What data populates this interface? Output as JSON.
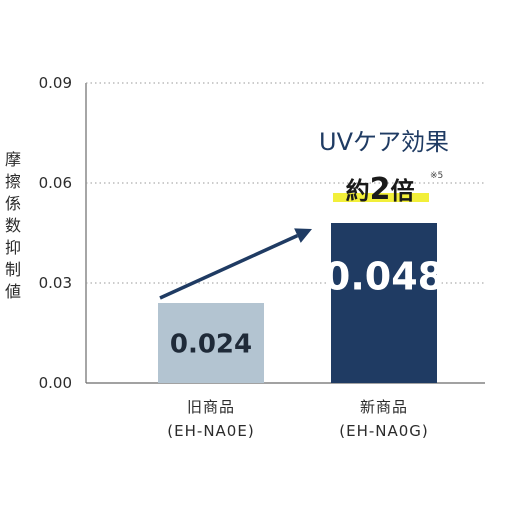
{
  "chart_data": {
    "type": "bar",
    "ylabel": "摩擦係数抑制値",
    "ylim": [
      0,
      0.09
    ],
    "yticks": [
      "0.09",
      "0.06",
      "0.03",
      "0.00"
    ],
    "ytick_values": [
      0.09,
      0.06,
      0.03,
      0.0
    ],
    "grid": "horizontal-dotted",
    "categories": [
      {
        "line1": "旧商品",
        "line2": "(EH-NA0E)"
      },
      {
        "line1": "新商品",
        "line2": "(EH-NA0G)"
      }
    ],
    "values": [
      0.024,
      0.048
    ],
    "data_labels": [
      "0.024",
      "0.048"
    ],
    "colors": [
      "#b3c4d1",
      "#1f3b63"
    ],
    "label_colors": [
      "#1f2a38",
      "#ffffff"
    ],
    "annotation": {
      "headline": "UVケア効果",
      "prefix": "約",
      "number": "2",
      "suffix": "倍",
      "note": "※5",
      "highlight_color": "#f2ef3a",
      "arrow_color": "#1f3b63"
    }
  }
}
